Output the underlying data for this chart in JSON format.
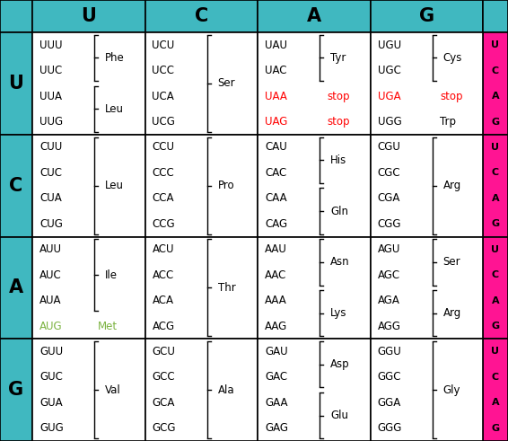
{
  "teal": "#40B8C0",
  "pink": "#FF1493",
  "white": "#FFFFFF",
  "red": "#FF0000",
  "green": "#7CB342",
  "black": "#000000",
  "col_headers": [
    "U",
    "C",
    "A",
    "G"
  ],
  "row_headers": [
    "U",
    "C",
    "A",
    "G"
  ],
  "pink_letters": [
    "U",
    "C",
    "A",
    "G"
  ],
  "figw": 5.66,
  "figh": 4.91,
  "dpi": 100,
  "cells": [
    [
      {
        "lines": [
          [
            "UUU",
            "black"
          ],
          [
            "UUC",
            "black"
          ]
        ],
        "bracket1": [
          0,
          1
        ],
        "aa1": [
          "Phe",
          "black"
        ],
        "lines2": [
          [
            "UUA",
            "black"
          ],
          [
            "UUG",
            "black"
          ]
        ],
        "bracket2": [
          0,
          1
        ],
        "aa2": [
          "Leu",
          "black"
        ]
      },
      {
        "lines": [
          [
            "UCU",
            "black"
          ],
          [
            "UCC",
            "black"
          ],
          [
            "UCA",
            "black"
          ],
          [
            "UCG",
            "black"
          ]
        ],
        "bracket1": [
          0,
          3
        ],
        "aa1": [
          "Ser",
          "black"
        ]
      },
      {
        "lines": [
          [
            "UAU",
            "black"
          ],
          [
            "UAC",
            "black"
          ]
        ],
        "bracket1": [
          0,
          1
        ],
        "aa1": [
          "Tyr",
          "black"
        ],
        "lines2": [
          [
            "UAA",
            "red",
            "stop"
          ],
          [
            "UAG",
            "red",
            "stop"
          ]
        ]
      },
      {
        "lines": [
          [
            "UGU",
            "black"
          ],
          [
            "UGC",
            "black"
          ]
        ],
        "bracket1": [
          0,
          1
        ],
        "aa1": [
          "Cys",
          "black"
        ],
        "lines2": [
          [
            "UGA",
            "red",
            "stop"
          ],
          [
            "UGG",
            "black",
            "Trp"
          ]
        ]
      }
    ],
    [
      {
        "lines": [
          [
            "CUU",
            "black"
          ],
          [
            "CUC",
            "black"
          ],
          [
            "CUA",
            "black"
          ],
          [
            "CUG",
            "black"
          ]
        ],
        "bracket1": [
          0,
          3
        ],
        "aa1": [
          "Leu",
          "black"
        ]
      },
      {
        "lines": [
          [
            "CCU",
            "black"
          ],
          [
            "CCC",
            "black"
          ],
          [
            "CCA",
            "black"
          ],
          [
            "CCG",
            "black"
          ]
        ],
        "bracket1": [
          0,
          3
        ],
        "aa1": [
          "Pro",
          "black"
        ]
      },
      {
        "lines": [
          [
            "CAU",
            "black"
          ],
          [
            "CAC",
            "black"
          ]
        ],
        "bracket1": [
          0,
          1
        ],
        "aa1": [
          "His",
          "black"
        ],
        "lines2": [
          [
            "CAA",
            "black"
          ],
          [
            "CAG",
            "black"
          ]
        ],
        "bracket2": [
          0,
          1
        ],
        "aa2": [
          "Gln",
          "black"
        ]
      },
      {
        "lines": [
          [
            "CGU",
            "black"
          ],
          [
            "CGC",
            "black"
          ],
          [
            "CGA",
            "black"
          ],
          [
            "CGG",
            "black"
          ]
        ],
        "bracket1": [
          0,
          3
        ],
        "aa1": [
          "Arg",
          "black"
        ]
      }
    ],
    [
      {
        "lines": [
          [
            "AUU",
            "black"
          ],
          [
            "AUC",
            "black"
          ],
          [
            "AUA",
            "black"
          ]
        ],
        "bracket1": [
          0,
          2
        ],
        "aa1": [
          "Ile",
          "black"
        ],
        "lines2": [
          [
            "AUG",
            "green"
          ]
        ],
        "aa2": [
          "Met",
          "green"
        ]
      },
      {
        "lines": [
          [
            "ACU",
            "black"
          ],
          [
            "ACC",
            "black"
          ],
          [
            "ACA",
            "black"
          ],
          [
            "ACG",
            "black"
          ]
        ],
        "bracket1": [
          0,
          3
        ],
        "aa1": [
          "Thr",
          "black"
        ]
      },
      {
        "lines": [
          [
            "AAU",
            "black"
          ],
          [
            "AAC",
            "black"
          ]
        ],
        "bracket1": [
          0,
          1
        ],
        "aa1": [
          "Asn",
          "black"
        ],
        "lines2": [
          [
            "AAA",
            "black"
          ],
          [
            "AAG",
            "black"
          ]
        ],
        "bracket2": [
          0,
          1
        ],
        "aa2": [
          "Lys",
          "black"
        ]
      },
      {
        "lines": [
          [
            "AGU",
            "black"
          ],
          [
            "AGC",
            "black"
          ]
        ],
        "bracket1": [
          0,
          1
        ],
        "aa1": [
          "Ser",
          "black"
        ],
        "lines2": [
          [
            "AGA",
            "black"
          ],
          [
            "AGG",
            "black"
          ]
        ],
        "bracket2": [
          0,
          1
        ],
        "aa2": [
          "Arg",
          "black"
        ]
      }
    ],
    [
      {
        "lines": [
          [
            "GUU",
            "black"
          ],
          [
            "GUC",
            "black"
          ],
          [
            "GUA",
            "black"
          ],
          [
            "GUG",
            "black"
          ]
        ],
        "bracket1": [
          0,
          3
        ],
        "aa1": [
          "Val",
          "black"
        ]
      },
      {
        "lines": [
          [
            "GCU",
            "black"
          ],
          [
            "GCC",
            "black"
          ],
          [
            "GCA",
            "black"
          ],
          [
            "GCG",
            "black"
          ]
        ],
        "bracket1": [
          0,
          3
        ],
        "aa1": [
          "Ala",
          "black"
        ]
      },
      {
        "lines": [
          [
            "GAU",
            "black"
          ],
          [
            "GAC",
            "black"
          ]
        ],
        "bracket1": [
          0,
          1
        ],
        "aa1": [
          "Asp",
          "black"
        ],
        "lines2": [
          [
            "GAA",
            "black"
          ],
          [
            "GAG",
            "black"
          ]
        ],
        "bracket2": [
          0,
          1
        ],
        "aa2": [
          "Glu",
          "black"
        ]
      },
      {
        "lines": [
          [
            "GGU",
            "black"
          ],
          [
            "GGC",
            "black"
          ],
          [
            "GGA",
            "black"
          ],
          [
            "GGG",
            "black"
          ]
        ],
        "bracket1": [
          0,
          3
        ],
        "aa1": [
          "Gly",
          "black"
        ]
      }
    ]
  ]
}
